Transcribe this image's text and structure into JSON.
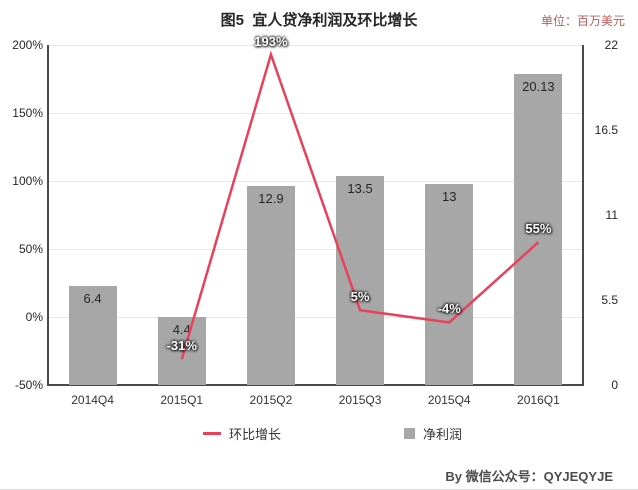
{
  "title": "图5  宜人贷净利润及环比增长",
  "unit_label": "单位：百万美元",
  "attribution": "By 微信公众号：QYJEQYJE",
  "colors": {
    "bar": "#a7a7a7",
    "line": "#e8415a",
    "grid": "#e8e8e8",
    "axis": "#4a4a4a",
    "bar_label_text": "#262626",
    "line_label_text": "#ffffff",
    "unit_text": "#b95c5c"
  },
  "legend": [
    {
      "label": "环比增长",
      "marker": "red-line"
    },
    {
      "label": "净利润",
      "marker": "gray-square"
    }
  ],
  "chart_data": {
    "type": "bar+line combo",
    "title": "图5 宜人贷净利润及环比增长",
    "unit": "百万美元",
    "categories": [
      "2014Q4",
      "2015Q1",
      "2015Q2",
      "2015Q3",
      "2015Q4",
      "2016Q1"
    ],
    "series": [
      {
        "name": "净利润",
        "type": "bar",
        "axis": "right",
        "values": [
          6.4,
          4.4,
          12.9,
          13.5,
          13,
          20.13
        ],
        "labels": [
          "6.4",
          "4.4",
          "12.9",
          "13.5",
          "13",
          "20.13"
        ]
      },
      {
        "name": "环比增长",
        "type": "line",
        "axis": "left",
        "values": [
          null,
          -31,
          193,
          5,
          -4,
          55
        ],
        "labels": [
          null,
          "-31%",
          "193%",
          "5%",
          "-4%",
          "55%"
        ]
      }
    ],
    "left_axis": {
      "min": -50,
      "max": 200,
      "tick_values": [
        200,
        150,
        100,
        50,
        0,
        -50
      ],
      "ticks": [
        "200%",
        "150%",
        "100%",
        "50%",
        "0%",
        "-50%"
      ]
    },
    "right_axis": {
      "min": 0,
      "max": 22,
      "tick_values": [
        22,
        16.5,
        11,
        5.5,
        0
      ],
      "ticks": [
        "22",
        "16.5",
        "11",
        "5.5",
        "0"
      ]
    },
    "grid": "horizontal-on",
    "legend_position": "bottom"
  }
}
